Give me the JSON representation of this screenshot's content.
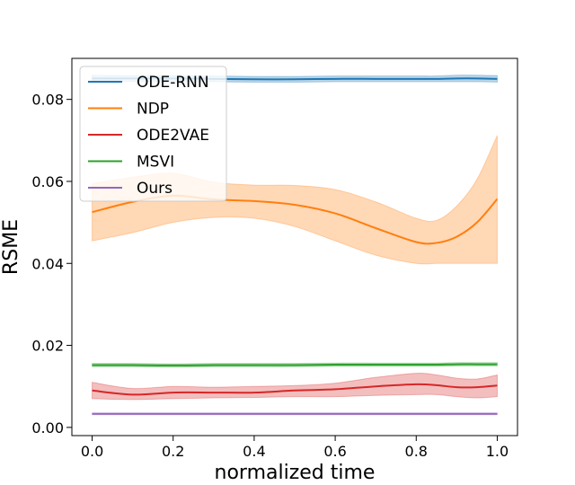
{
  "chart_data": {
    "type": "line",
    "title": "",
    "xlabel": "normalized time",
    "ylabel": "RSME",
    "xlim": [
      -0.05,
      1.05
    ],
    "ylim": [
      -0.002,
      0.09
    ],
    "xticks": [
      0.0,
      0.2,
      0.4,
      0.6,
      0.8,
      1.0
    ],
    "xtick_labels": [
      "0.0",
      "0.2",
      "0.4",
      "0.6",
      "0.8",
      "1.0"
    ],
    "yticks": [
      0.0,
      0.02,
      0.04,
      0.06,
      0.08
    ],
    "ytick_labels": [
      "0.00",
      "0.02",
      "0.04",
      "0.06",
      "0.08"
    ],
    "grid": false,
    "legend_position": "top-left",
    "x": [
      0.0,
      0.1,
      0.2,
      0.3,
      0.4,
      0.5,
      0.6,
      0.7,
      0.8,
      0.85,
      0.9,
      0.95,
      1.0
    ],
    "series": [
      {
        "name": "ODE-RNN",
        "color": "#1f77b4",
        "values": [
          0.0851,
          0.0851,
          0.0851,
          0.085,
          0.0849,
          0.0849,
          0.085,
          0.085,
          0.085,
          0.085,
          0.0851,
          0.0851,
          0.085
        ],
        "lower": [
          0.0843,
          0.0844,
          0.0844,
          0.0843,
          0.0842,
          0.0842,
          0.0843,
          0.0843,
          0.0843,
          0.0843,
          0.0843,
          0.0843,
          0.0842
        ],
        "upper": [
          0.0859,
          0.0858,
          0.0858,
          0.0857,
          0.0856,
          0.0856,
          0.0857,
          0.0857,
          0.0857,
          0.0857,
          0.0859,
          0.0859,
          0.0858
        ]
      },
      {
        "name": "NDP",
        "color": "#ff7f0e",
        "values": [
          0.0525,
          0.055,
          0.0565,
          0.0556,
          0.0552,
          0.0543,
          0.0522,
          0.0486,
          0.0452,
          0.045,
          0.0465,
          0.05,
          0.0557
        ],
        "lower": [
          0.0455,
          0.0475,
          0.05,
          0.0512,
          0.051,
          0.049,
          0.0455,
          0.042,
          0.04,
          0.04,
          0.04,
          0.04,
          0.04
        ],
        "upper": [
          0.0595,
          0.061,
          0.062,
          0.0598,
          0.0591,
          0.059,
          0.058,
          0.055,
          0.051,
          0.0505,
          0.054,
          0.0605,
          0.0712
        ]
      },
      {
        "name": "ODE2VAE",
        "color": "#d62728",
        "values": [
          0.009,
          0.008,
          0.0085,
          0.0085,
          0.0085,
          0.009,
          0.0093,
          0.01,
          0.0105,
          0.0103,
          0.0098,
          0.0098,
          0.0102
        ],
        "lower": [
          0.007,
          0.0068,
          0.007,
          0.0072,
          0.0073,
          0.0075,
          0.0075,
          0.0078,
          0.008,
          0.008,
          0.0075,
          0.0072,
          0.0075
        ],
        "upper": [
          0.011,
          0.0095,
          0.01,
          0.0098,
          0.01,
          0.0102,
          0.0108,
          0.0122,
          0.0132,
          0.0128,
          0.012,
          0.0118,
          0.0128
        ]
      },
      {
        "name": "MSVI",
        "color": "#2ca02c",
        "values": [
          0.0152,
          0.0152,
          0.0151,
          0.0152,
          0.0152,
          0.0152,
          0.0153,
          0.0153,
          0.0153,
          0.0153,
          0.0154,
          0.0154,
          0.0154
        ],
        "lower": [
          0.0148,
          0.0148,
          0.0147,
          0.0148,
          0.0148,
          0.0148,
          0.0149,
          0.0149,
          0.0149,
          0.0149,
          0.015,
          0.015,
          0.015
        ],
        "upper": [
          0.0156,
          0.0156,
          0.0155,
          0.0156,
          0.0156,
          0.0156,
          0.0157,
          0.0157,
          0.0157,
          0.0157,
          0.0158,
          0.0158,
          0.0158
        ]
      },
      {
        "name": "Ours",
        "color": "#9467bd",
        "values": [
          0.0033,
          0.0033,
          0.0033,
          0.0033,
          0.0033,
          0.0033,
          0.0033,
          0.0033,
          0.0033,
          0.0033,
          0.0033,
          0.0033,
          0.0033
        ],
        "lower": [
          0.0031,
          0.0031,
          0.0031,
          0.0031,
          0.0031,
          0.0031,
          0.0031,
          0.0031,
          0.0031,
          0.0031,
          0.0031,
          0.0031,
          0.0031
        ],
        "upper": [
          0.0035,
          0.0035,
          0.0035,
          0.0035,
          0.0035,
          0.0035,
          0.0035,
          0.0035,
          0.0035,
          0.0035,
          0.0035,
          0.0035,
          0.0035
        ]
      }
    ]
  }
}
